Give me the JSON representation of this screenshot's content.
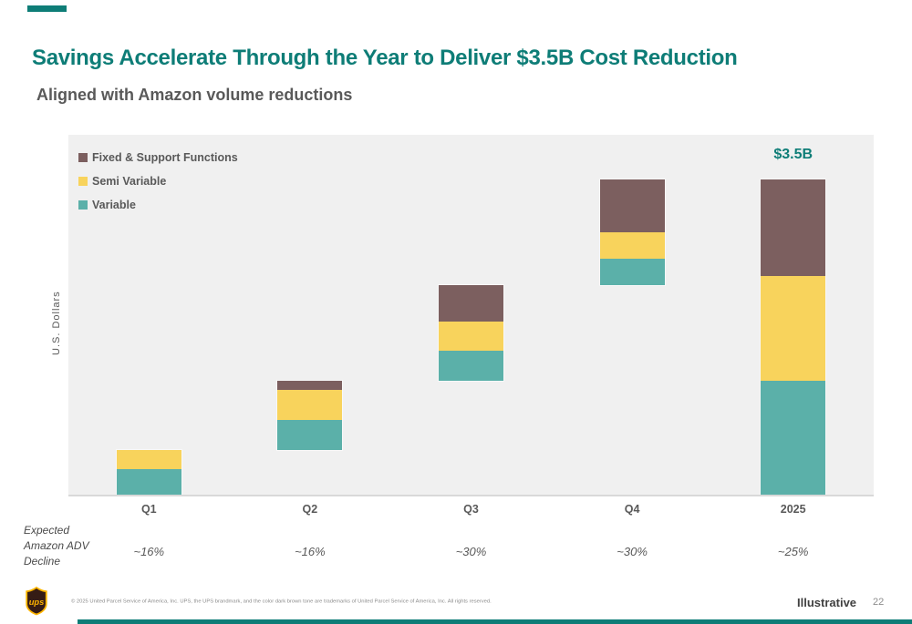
{
  "slide": {
    "title": "Savings Accelerate Through the Year to Deliver $3.5B Cost Reduction",
    "subtitle": "Aligned with Amazon volume reductions",
    "illustrative_label": "Illustrative",
    "page_number": "22",
    "footer_copyright": "© 2025 United Parcel Service of America, Inc. UPS, the UPS brandmark, and the color dark brown tone are trademarks of United Parcel Service of America, Inc. All rights reserved.",
    "logo_text": "ups",
    "accent_color": "#0E7D77"
  },
  "colors": {
    "fixed_support": "#7C5F5F",
    "semi_variable": "#F8D35C",
    "variable": "#5BB0A9",
    "plot_background": "#F0F0F0",
    "accent_teal": "#0E7D77",
    "logo_brown": "#351C15",
    "logo_gold": "#FFB500"
  },
  "chart_data": {
    "type": "bar",
    "subtype": "stacked-waterfall",
    "title_annotation": "$3.5B",
    "ylabel": "U.S. Dollars",
    "units": "USD billions, estimated from bar heights",
    "total_billions": 3.5,
    "categories": [
      "Q1",
      "Q2",
      "Q3",
      "Q4",
      "2025"
    ],
    "legend": [
      {
        "key": "fixed_support",
        "label": "Fixed & Support Functions"
      },
      {
        "key": "semi_variable",
        "label": "Semi Variable"
      },
      {
        "key": "variable",
        "label": "Variable"
      }
    ],
    "bars": [
      {
        "category": "Q1",
        "base": 0.0,
        "variable": 0.29,
        "semi_variable": 0.21,
        "fixed_support": 0.0
      },
      {
        "category": "Q2",
        "base": 0.5,
        "variable": 0.34,
        "semi_variable": 0.33,
        "fixed_support": 0.1
      },
      {
        "category": "Q3",
        "base": 1.27,
        "variable": 0.33,
        "semi_variable": 0.32,
        "fixed_support": 0.4
      },
      {
        "category": "Q4",
        "base": 2.32,
        "variable": 0.3,
        "semi_variable": 0.29,
        "fixed_support": 0.58
      },
      {
        "category": "2025",
        "base": 0.0,
        "variable": 1.27,
        "semi_variable": 1.15,
        "fixed_support": 1.07
      }
    ],
    "footnote_row": {
      "label": "Expected Amazon ADV Decline",
      "values": [
        "~16%",
        "~16%",
        "~30%",
        "~30%",
        "~25%"
      ]
    }
  }
}
